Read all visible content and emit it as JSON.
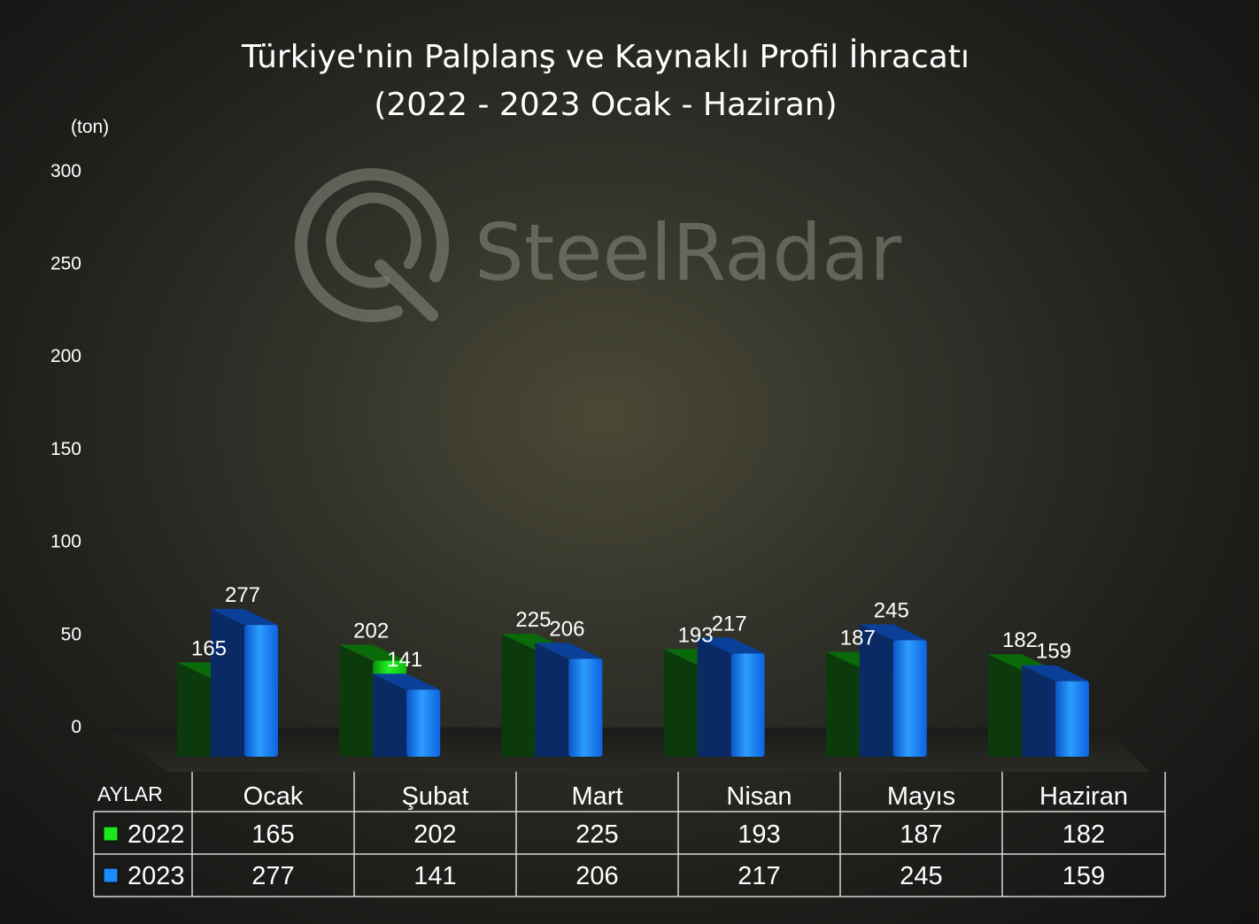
{
  "chart_data": {
    "type": "bar",
    "title": "Türkiye'nin Palplanş ve Kaynaklı Profil İhracatı",
    "subtitle": "(2022 - 2023 Ocak - Haziran)",
    "ylabel": "(ton)",
    "ylim": [
      0,
      300
    ],
    "yticks": [
      "0",
      "50",
      "100",
      "150",
      "200",
      "250",
      "300"
    ],
    "categories": [
      "Ocak",
      "Şubat",
      "Mart",
      "Nisan",
      "Mayıs",
      "Haziran"
    ],
    "series": [
      {
        "name": "2022",
        "color": "#1ee61e",
        "values": [
          165,
          202,
          225,
          193,
          187,
          182
        ]
      },
      {
        "name": "2023",
        "color": "#1a8cff",
        "values": [
          277,
          141,
          206,
          217,
          245,
          159
        ]
      }
    ],
    "data_table": {
      "header_label": "AYLAR"
    }
  },
  "watermark": {
    "text": "SteelRadar",
    "icon": "steelradar-logo-icon"
  }
}
